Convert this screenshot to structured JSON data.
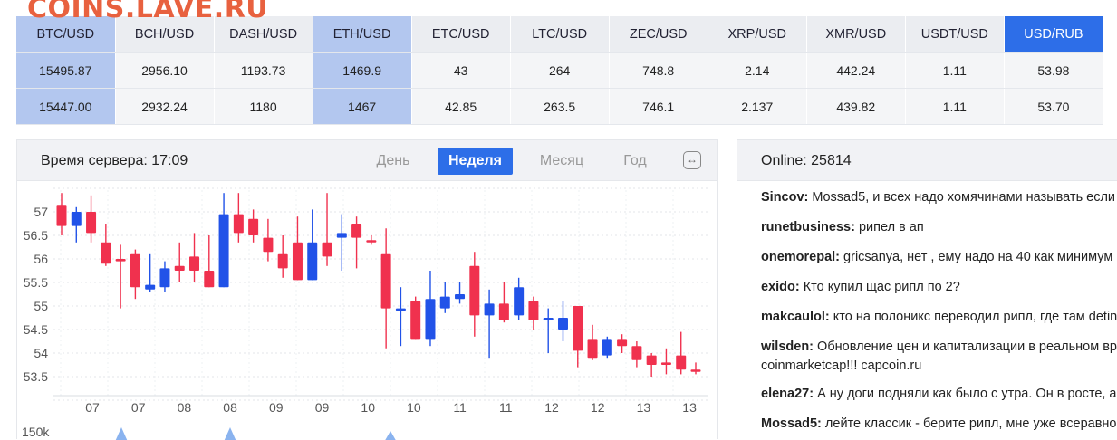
{
  "site": {
    "logo": "COINS.LAVE.RU"
  },
  "rates": {
    "headers": [
      "BTC/USD",
      "BCH/USD",
      "DASH/USD",
      "ETH/USD",
      "ETC/USD",
      "LTC/USD",
      "ZEC/USD",
      "XRP/USD",
      "XMR/USD",
      "USDT/USD",
      "USD/RUB"
    ],
    "row1": [
      "15495.87",
      "2956.10",
      "1193.73",
      "1469.9",
      "43",
      "264",
      "748.8",
      "2.14",
      "442.24",
      "1.11",
      "53.98"
    ],
    "row2": [
      "15447.00",
      "2932.24",
      "1180",
      "1467",
      "42.85",
      "263.5",
      "746.1",
      "2.137",
      "439.82",
      "1.11",
      "53.70"
    ],
    "highlight_color": "#b3c7ef",
    "active_color": "#2d6ee8"
  },
  "chart_panel": {
    "server_time": "Время сервера: 17:09",
    "periods": [
      "День",
      "Неделя",
      "Месяц",
      "Год"
    ],
    "active_period": "Неделя",
    "expand_icon": "expand-horizontal-icon"
  },
  "chart_data": {
    "type": "candlestick",
    "ylim": [
      53.2,
      57.4
    ],
    "y_ticks": [
      "57",
      "56.5",
      "56",
      "55.5",
      "55",
      "54.5",
      "54",
      "53.5"
    ],
    "x_ticks": [
      "07",
      "07",
      "08",
      "08",
      "09",
      "09",
      "10",
      "10",
      "11",
      "11",
      "12",
      "12",
      "13",
      "13"
    ],
    "volume_label": "150k",
    "up_color": "#2152e8",
    "down_color": "#f0314e",
    "candles": [
      {
        "o": 57.15,
        "c": 56.7,
        "h": 57.4,
        "l": 56.5
      },
      {
        "o": 56.7,
        "c": 57.0,
        "h": 57.1,
        "l": 56.35
      },
      {
        "o": 57.0,
        "c": 56.55,
        "h": 57.35,
        "l": 56.35
      },
      {
        "o": 56.35,
        "c": 55.9,
        "h": 56.75,
        "l": 55.85
      },
      {
        "o": 56.0,
        "c": 55.95,
        "h": 56.3,
        "l": 54.95
      },
      {
        "o": 56.1,
        "c": 55.4,
        "h": 56.2,
        "l": 55.15
      },
      {
        "o": 55.35,
        "c": 55.45,
        "h": 56.1,
        "l": 55.3
      },
      {
        "o": 55.4,
        "c": 55.8,
        "h": 55.95,
        "l": 55.3
      },
      {
        "o": 55.85,
        "c": 55.75,
        "h": 56.35,
        "l": 55.5
      },
      {
        "o": 56.05,
        "c": 55.75,
        "h": 56.55,
        "l": 55.5
      },
      {
        "o": 55.75,
        "c": 55.4,
        "h": 56.5,
        "l": 55.4
      },
      {
        "o": 55.4,
        "c": 56.95,
        "h": 57.4,
        "l": 55.4
      },
      {
        "o": 56.95,
        "c": 56.55,
        "h": 57.4,
        "l": 56.35
      },
      {
        "o": 56.85,
        "c": 56.5,
        "h": 57.05,
        "l": 56.35
      },
      {
        "o": 56.45,
        "c": 56.15,
        "h": 56.85,
        "l": 55.95
      },
      {
        "o": 56.1,
        "c": 55.8,
        "h": 56.5,
        "l": 55.6
      },
      {
        "o": 56.35,
        "c": 55.55,
        "h": 56.9,
        "l": 55.55
      },
      {
        "o": 55.55,
        "c": 56.35,
        "h": 57.05,
        "l": 55.55
      },
      {
        "o": 56.35,
        "c": 56.05,
        "h": 57.4,
        "l": 55.85
      },
      {
        "o": 56.45,
        "c": 56.55,
        "h": 56.95,
        "l": 55.75
      },
      {
        "o": 56.75,
        "c": 56.45,
        "h": 56.9,
        "l": 55.8
      },
      {
        "o": 56.4,
        "c": 56.35,
        "h": 56.5,
        "l": 56.3
      },
      {
        "o": 56.1,
        "c": 54.95,
        "h": 56.65,
        "l": 54.1
      },
      {
        "o": 54.95,
        "c": 54.95,
        "h": 55.4,
        "l": 54.15
      },
      {
        "o": 55.1,
        "c": 54.3,
        "h": 55.2,
        "l": 54.3
      },
      {
        "o": 54.3,
        "c": 55.15,
        "h": 55.75,
        "l": 54.15
      },
      {
        "o": 54.95,
        "c": 55.2,
        "h": 55.5,
        "l": 54.85
      },
      {
        "o": 55.15,
        "c": 55.25,
        "h": 55.5,
        "l": 55.05
      },
      {
        "o": 55.85,
        "c": 54.8,
        "h": 56.15,
        "l": 54.35
      },
      {
        "o": 54.8,
        "c": 55.05,
        "h": 55.35,
        "l": 53.9
      },
      {
        "o": 55.05,
        "c": 54.7,
        "h": 55.5,
        "l": 54.65
      },
      {
        "o": 54.8,
        "c": 55.4,
        "h": 55.6,
        "l": 54.7
      },
      {
        "o": 55.1,
        "c": 54.7,
        "h": 55.2,
        "l": 54.5
      },
      {
        "o": 54.7,
        "c": 54.75,
        "h": 54.95,
        "l": 54.0
      },
      {
        "o": 54.5,
        "c": 54.75,
        "h": 55.1,
        "l": 54.25
      },
      {
        "o": 55.0,
        "c": 54.05,
        "h": 55.0,
        "l": 53.7
      },
      {
        "o": 54.3,
        "c": 53.9,
        "h": 54.6,
        "l": 53.85
      },
      {
        "o": 53.95,
        "c": 54.3,
        "h": 54.35,
        "l": 53.9
      },
      {
        "o": 54.3,
        "c": 54.15,
        "h": 54.4,
        "l": 54.0
      },
      {
        "o": 54.15,
        "c": 53.85,
        "h": 54.25,
        "l": 53.7
      },
      {
        "o": 53.95,
        "c": 53.75,
        "h": 54.0,
        "l": 53.5
      },
      {
        "o": 53.8,
        "c": 53.75,
        "h": 54.1,
        "l": 53.55
      },
      {
        "o": 53.95,
        "c": 53.65,
        "h": 54.45,
        "l": 53.55
      },
      {
        "o": 53.65,
        "c": 53.6,
        "h": 53.8,
        "l": 53.55
      }
    ]
  },
  "chat": {
    "online": "Online: 25814",
    "messages": [
      {
        "user": "Sincov:",
        "text": "Mossad5, и всех надо хомячинами называть если т"
      },
      {
        "user": "runetbusiness:",
        "text": "рипел в ап"
      },
      {
        "user": "onemorepal:",
        "text": "gricsanya, нет , ему надо на 40 как минимум с"
      },
      {
        "user": "exido:",
        "text": "Кто купил щас рипл по 2?"
      },
      {
        "user": "makcaulol:",
        "text": "кто на полоникс переводил рипл, где там detins"
      },
      {
        "user": "wilsden:",
        "text": "Обновление цен и капитализации в реальном вре",
        "text2": "coinmarketcap!!! capcoin.ru"
      },
      {
        "user": "elena27:",
        "text": "А ну доги подняли как было с утра. Он в росте, а н"
      },
      {
        "user": "Mossad5:",
        "text": "лейте классик - берите рипл, мне уже всеравно"
      }
    ]
  }
}
